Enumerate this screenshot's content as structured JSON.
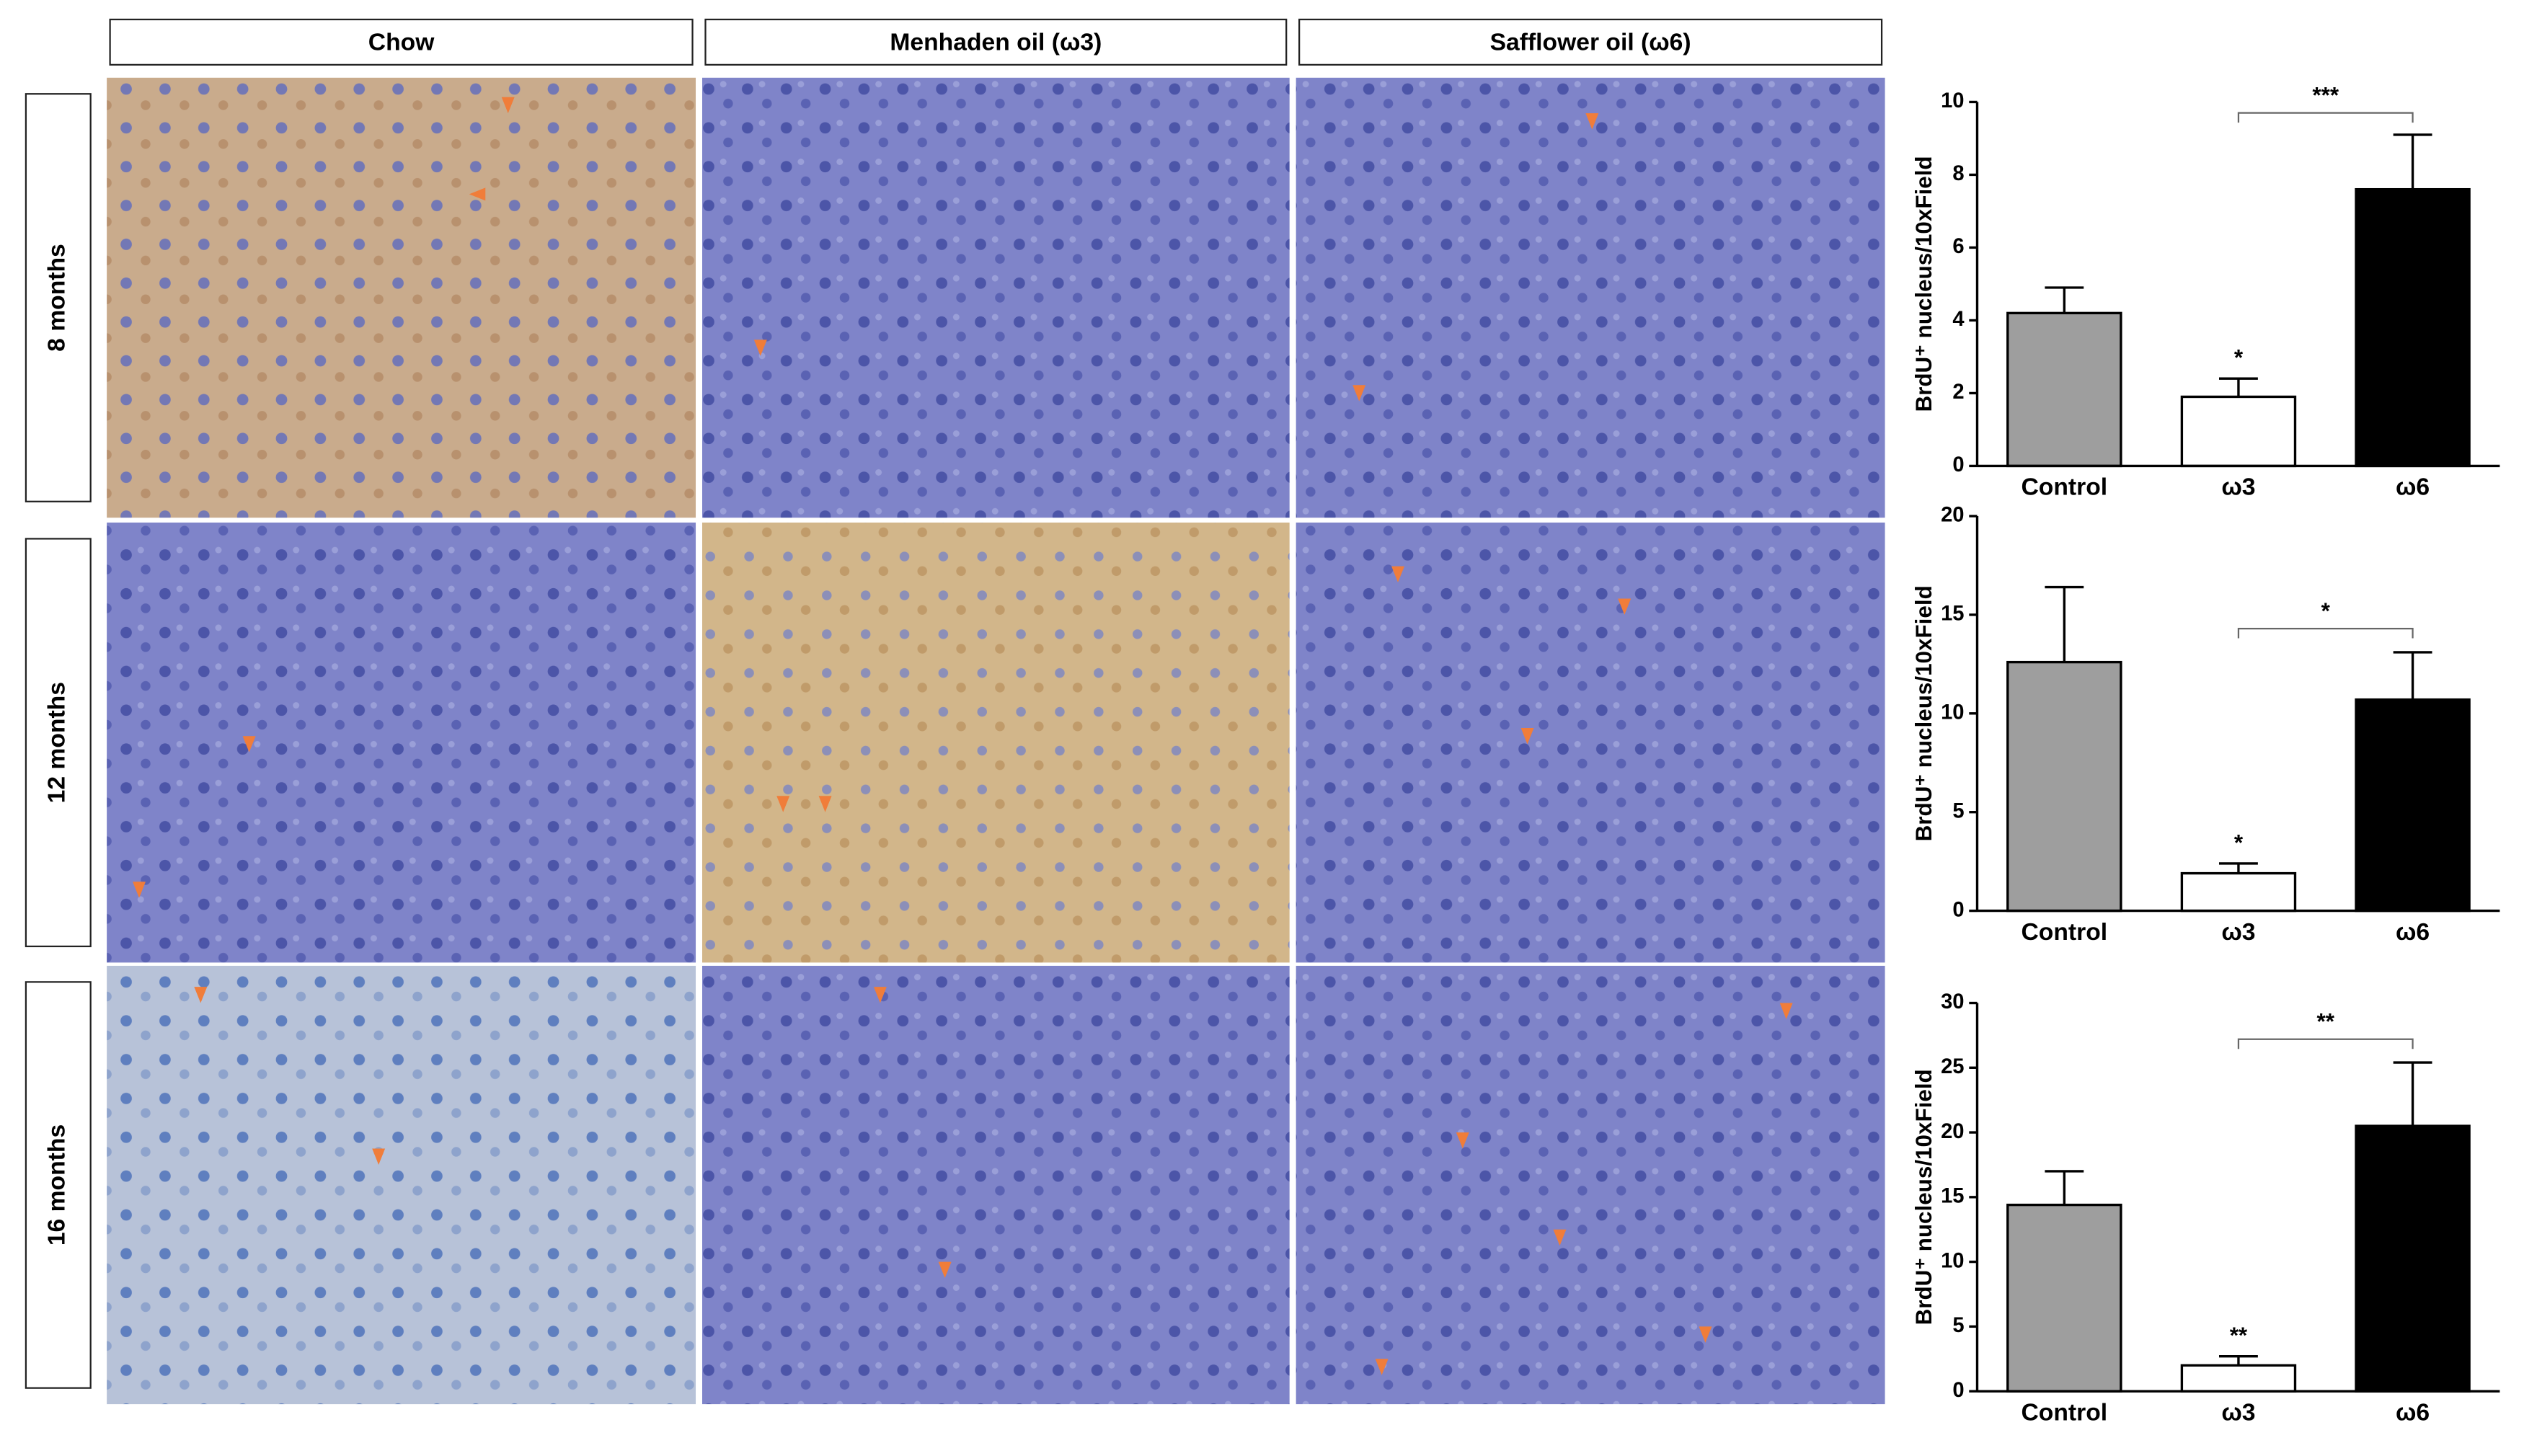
{
  "column_headers": [
    "Chow",
    "Menhaden oil (ω3)",
    "Safflower oil (ω6)"
  ],
  "row_labels": [
    "8 months",
    "12 months",
    "16 months"
  ],
  "chart_data": [
    {
      "type": "bar",
      "y_label": "BrdU⁺ nucleus/10xField",
      "categories": [
        "Control",
        "ω3",
        "ω6"
      ],
      "values": [
        4.2,
        1.9,
        7.6
      ],
      "errors": [
        0.7,
        0.5,
        1.5
      ],
      "colors": [
        "#9e9e9e",
        "#ffffff",
        "#000000"
      ],
      "ylim": [
        0,
        10
      ],
      "yticks": [
        0,
        2,
        4,
        6,
        8,
        10
      ],
      "annotations": [
        {
          "at": "ω3",
          "text": "*"
        }
      ],
      "bracket": {
        "from": "ω3",
        "to": "ω6",
        "text": "***"
      }
    },
    {
      "type": "bar",
      "y_label": "BrdU⁺ nucleus/10xField",
      "categories": [
        "Control",
        "ω3",
        "ω6"
      ],
      "values": [
        12.6,
        1.9,
        10.7
      ],
      "errors": [
        3.8,
        0.5,
        2.4
      ],
      "colors": [
        "#9e9e9e",
        "#ffffff",
        "#000000"
      ],
      "ylim": [
        0,
        20
      ],
      "yticks": [
        0,
        5,
        10,
        15,
        20
      ],
      "annotations": [
        {
          "at": "ω3",
          "text": "*"
        }
      ],
      "bracket": {
        "from": "ω3",
        "to": "ω6",
        "text": "*"
      }
    },
    {
      "type": "bar",
      "y_label": "BrdU⁺ nucleus/10xField",
      "categories": [
        "Control",
        "ω3",
        "ω6"
      ],
      "values": [
        14.4,
        2.0,
        20.5
      ],
      "errors": [
        2.6,
        0.7,
        4.9
      ],
      "colors": [
        "#9e9e9e",
        "#ffffff",
        "#000000"
      ],
      "ylim": [
        0,
        30
      ],
      "yticks": [
        0,
        5,
        10,
        15,
        20,
        25,
        30
      ],
      "annotations": [
        {
          "at": "ω3",
          "text": "**"
        }
      ],
      "bracket": {
        "from": "ω3",
        "to": "ω6",
        "text": "**"
      }
    }
  ]
}
